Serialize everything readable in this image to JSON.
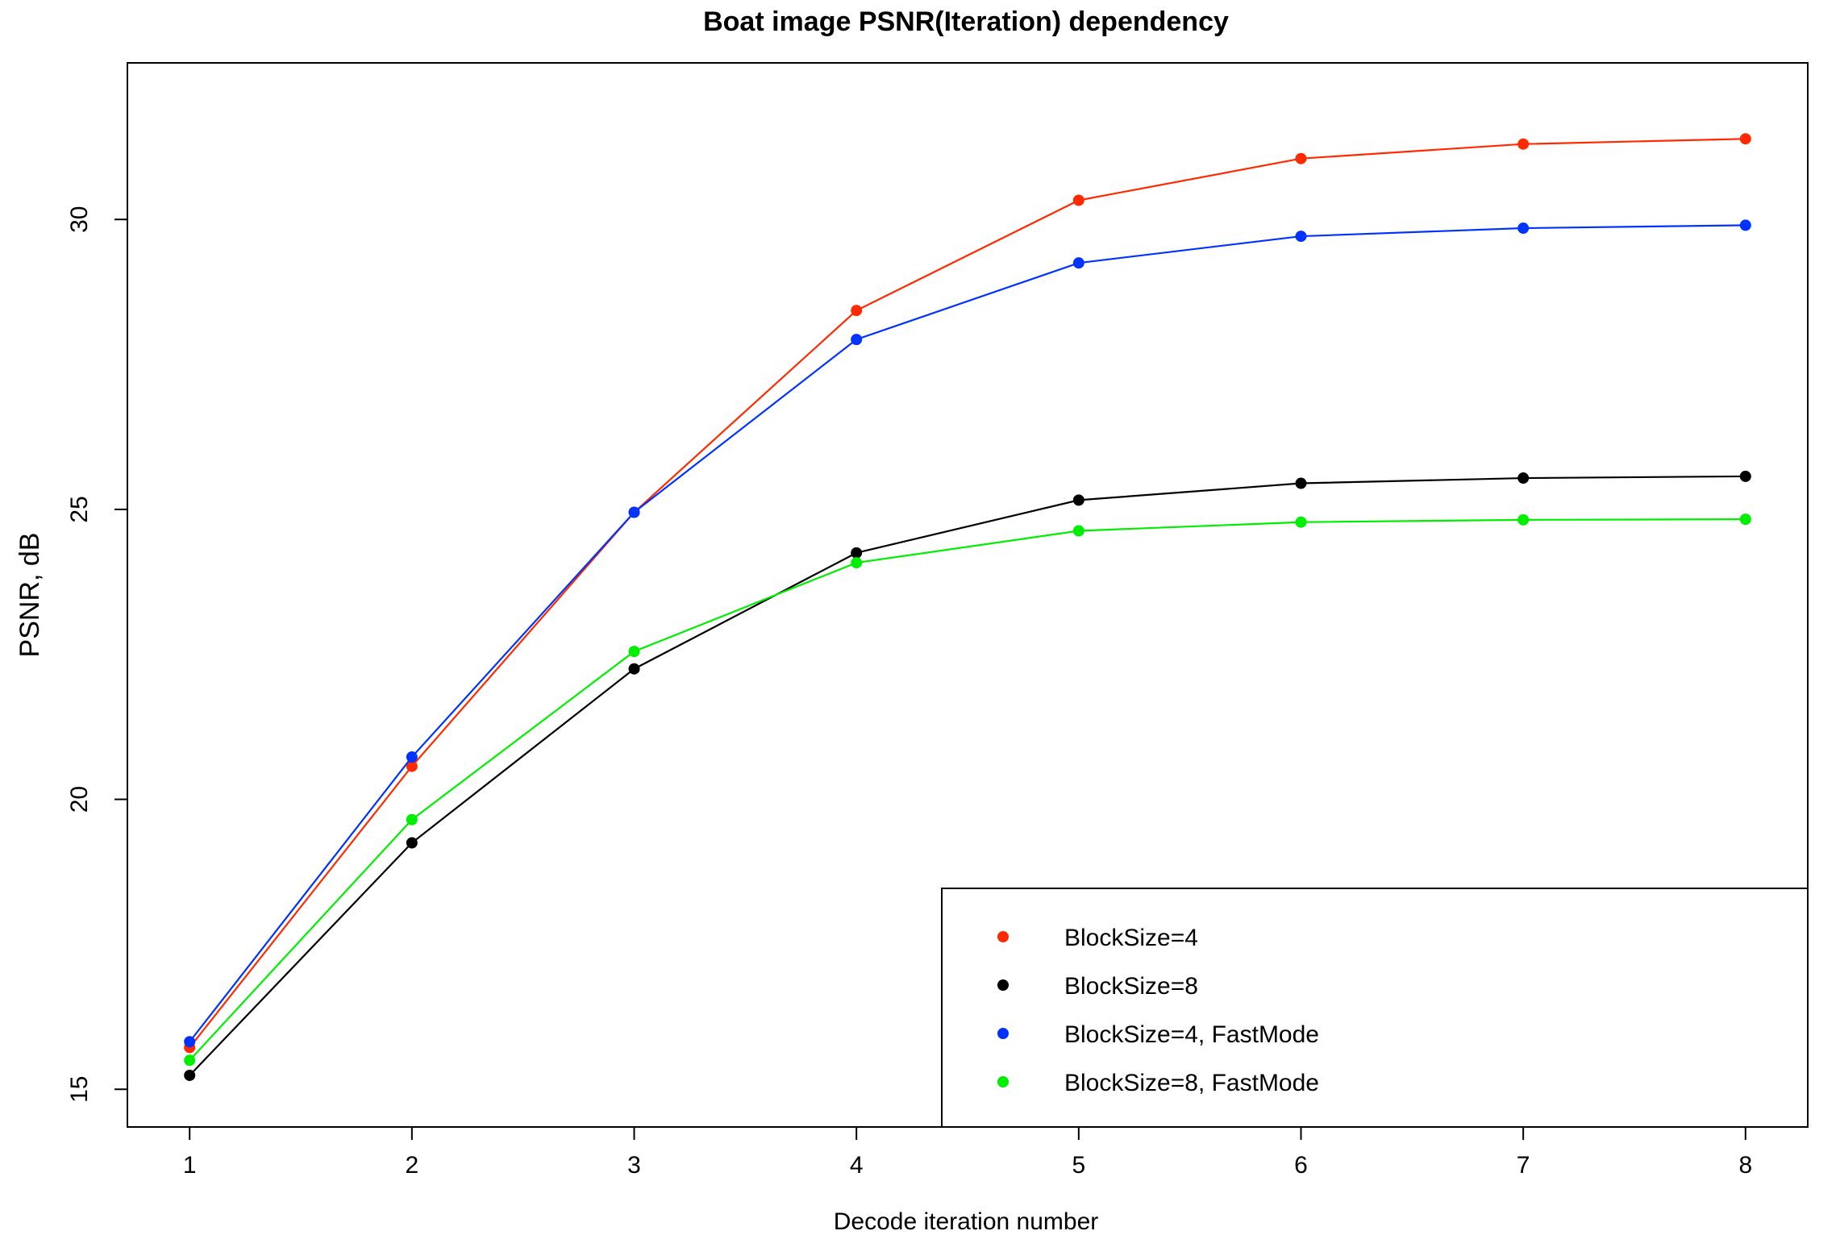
{
  "chart_data": {
    "type": "line",
    "title": "Boat image PSNR(Iteration) dependency",
    "xlabel": "Decode iteration number",
    "ylabel": "PSNR, dB",
    "x": [
      1,
      2,
      3,
      4,
      5,
      6,
      7,
      8
    ],
    "xticks": [
      "1",
      "2",
      "3",
      "4",
      "5",
      "6",
      "7",
      "8"
    ],
    "yticks": [
      "15",
      "20",
      "25",
      "30"
    ],
    "xlim": [
      0.72,
      8.28
    ],
    "ylim": [
      14.35,
      32.7
    ],
    "grid": false,
    "legend_position": "bottom-right",
    "series": [
      {
        "name": "BlockSize=4",
        "color": "#ff2a00",
        "values": [
          15.72,
          20.57,
          24.95,
          28.43,
          30.33,
          31.05,
          31.3,
          31.39
        ]
      },
      {
        "name": "BlockSize=8",
        "color": "#000000",
        "values": [
          15.24,
          19.25,
          22.25,
          24.25,
          25.16,
          25.45,
          25.54,
          25.57
        ]
      },
      {
        "name": "BlockSize=4, FastMode",
        "color": "#0033ff",
        "values": [
          15.82,
          20.73,
          24.95,
          27.93,
          29.25,
          29.71,
          29.85,
          29.9
        ]
      },
      {
        "name": "BlockSize=8, FastMode",
        "color": "#00ee00",
        "values": [
          15.5,
          19.65,
          22.55,
          24.08,
          24.63,
          24.78,
          24.82,
          24.83
        ]
      }
    ]
  }
}
